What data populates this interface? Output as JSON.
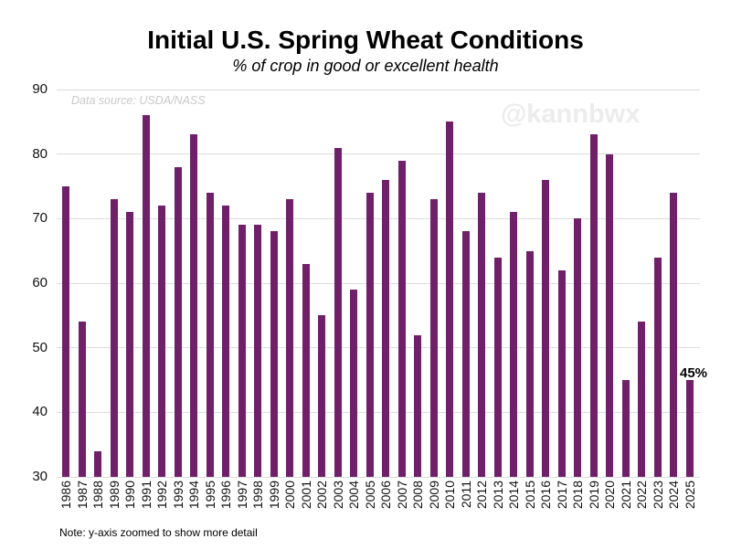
{
  "title": "Initial U.S. Spring Wheat Conditions",
  "subtitle": "% of crop in good or excellent health",
  "source_note": "Data source: USDA/NASS",
  "watermark": "@kannbwx",
  "footnote": "Note: y-axis zoomed to show more detail",
  "annotation": {
    "text": "45%",
    "year": "2025",
    "value": 45
  },
  "colors": {
    "bar": "#6E2069",
    "gridline": "#dcdcdc",
    "tick_text": "#111111",
    "watermark": "#ececec",
    "source_text": "#c9c9c9"
  },
  "chart_data": {
    "type": "bar",
    "title": "Initial U.S. Spring Wheat Conditions",
    "subtitle": "% of crop in good or excellent health",
    "xlabel": "",
    "ylabel": "",
    "ylim": [
      30,
      90
    ],
    "yticks": [
      30,
      40,
      50,
      60,
      70,
      80,
      90
    ],
    "grid": "horizontal",
    "legend": "none",
    "bar_color": "#6E2069",
    "categories": [
      "1986",
      "1987",
      "1988",
      "1989",
      "1990",
      "1991",
      "1992",
      "1993",
      "1994",
      "1995",
      "1996",
      "1997",
      "1998",
      "1999",
      "2000",
      "2001",
      "2002",
      "2003",
      "2004",
      "2005",
      "2006",
      "2007",
      "2008",
      "2009",
      "2010",
      "2011",
      "2012",
      "2013",
      "2014",
      "2015",
      "2016",
      "2017",
      "2018",
      "2019",
      "2020",
      "2021",
      "2022",
      "2023",
      "2024",
      "2025"
    ],
    "values": [
      75,
      54,
      34,
      73,
      71,
      86,
      72,
      78,
      83,
      74,
      72,
      69,
      69,
      68,
      73,
      63,
      55,
      81,
      59,
      74,
      76,
      79,
      52,
      73,
      85,
      68,
      74,
      64,
      71,
      65,
      76,
      62,
      70,
      83,
      80,
      45,
      54,
      64,
      74,
      45
    ]
  }
}
